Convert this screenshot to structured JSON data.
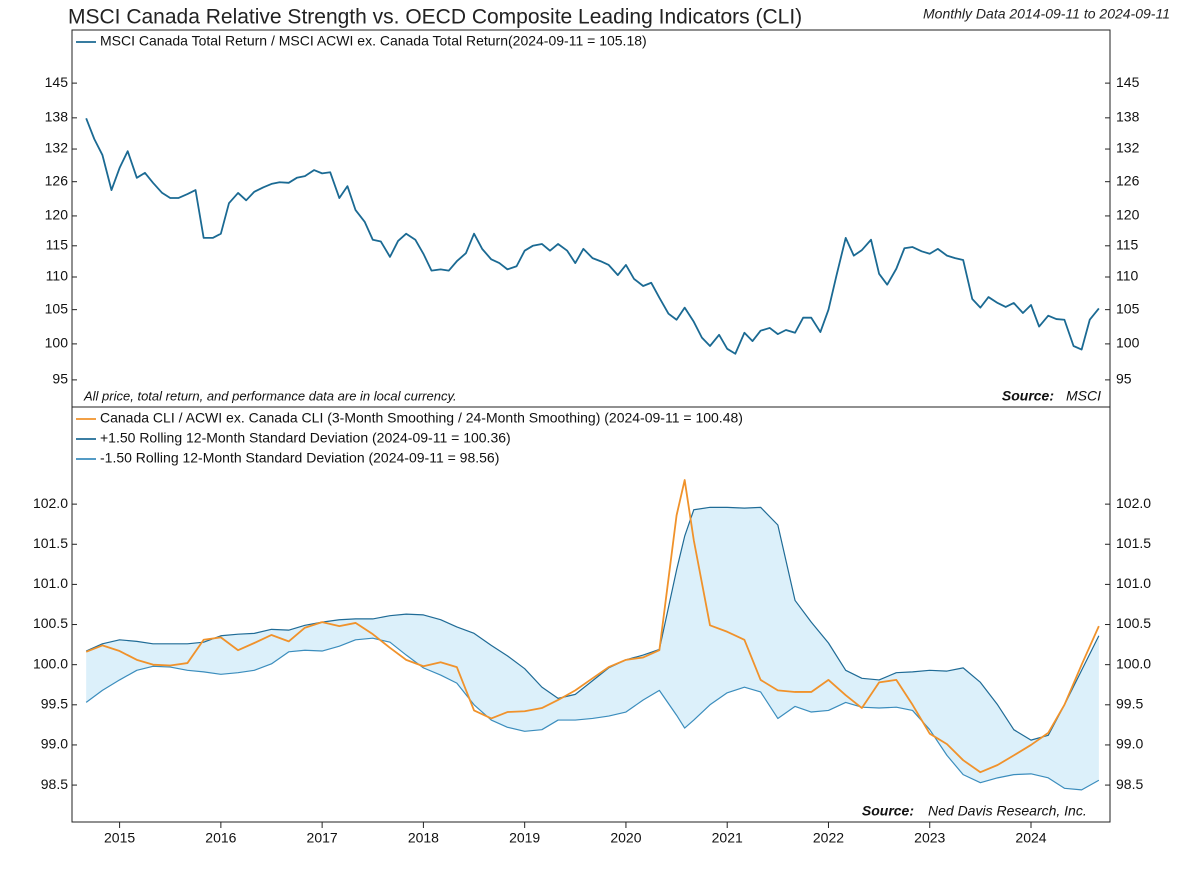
{
  "chart_data": [
    {
      "type": "line",
      "title": "MSCI Canada Relative Strength vs. OECD Composite Leading Indicators (CLI)",
      "subtitle": "Monthly Data 2014-09-11 to 2024-09-11",
      "x": [
        2014.67,
        2014.75,
        2014.83,
        2014.92,
        2015,
        2015.08,
        2015.17,
        2015.25,
        2015.33,
        2015.42,
        2015.5,
        2015.58,
        2015.67,
        2015.75,
        2015.83,
        2015.92,
        2016,
        2016.08,
        2016.17,
        2016.25,
        2016.33,
        2016.42,
        2016.5,
        2016.58,
        2016.67,
        2016.75,
        2016.83,
        2016.92,
        2017,
        2017.08,
        2017.17,
        2017.25,
        2017.33,
        2017.42,
        2017.5,
        2017.58,
        2017.67,
        2017.75,
        2017.83,
        2017.92,
        2018,
        2018.08,
        2018.17,
        2018.25,
        2018.33,
        2018.42,
        2018.5,
        2018.58,
        2018.67,
        2018.75,
        2018.83,
        2018.92,
        2019,
        2019.08,
        2019.17,
        2019.25,
        2019.33,
        2019.42,
        2019.5,
        2019.58,
        2019.67,
        2019.75,
        2019.83,
        2019.92,
        2020,
        2020.08,
        2020.17,
        2020.25,
        2020.33,
        2020.42,
        2020.5,
        2020.58,
        2020.67,
        2020.75,
        2020.83,
        2020.92,
        2021,
        2021.08,
        2021.17,
        2021.25,
        2021.33,
        2021.42,
        2021.5,
        2021.58,
        2021.67,
        2021.75,
        2021.83,
        2021.92,
        2022,
        2022.08,
        2022.17,
        2022.25,
        2022.33,
        2022.42,
        2022.5,
        2022.58,
        2022.67,
        2022.75,
        2022.83,
        2022.92,
        2023,
        2023.08,
        2023.17,
        2023.25,
        2023.33,
        2023.42,
        2023.5,
        2023.58,
        2023.67,
        2023.75,
        2023.83,
        2023.92,
        2024,
        2024.08,
        2024.17,
        2024.25,
        2024.33,
        2024.42,
        2024.5,
        2024.58,
        2024.67
      ],
      "xlim": [
        2014.53,
        2024.78
      ],
      "ylim": [
        91.4,
        156.4
      ],
      "log_scale": true,
      "yticks": [
        95,
        100,
        105,
        110,
        115,
        120,
        126,
        132,
        138,
        145
      ],
      "series": [
        {
          "name": "MSCI Canada Total Return / MSCI ACWI ex. Canada Total Return(2024-09-11 = 105.18)",
          "color": "#1b6a93",
          "values": [
            137.9,
            133.9,
            130.9,
            124.5,
            128.5,
            131.6,
            126.7,
            127.6,
            125.8,
            124.0,
            123.1,
            123.1,
            123.8,
            124.5,
            116.3,
            116.3,
            117.0,
            122.2,
            124.0,
            122.7,
            124.2,
            125.0,
            125.6,
            125.9,
            125.8,
            126.7,
            127.0,
            128.1,
            127.5,
            127.7,
            123.1,
            125.2,
            121.0,
            119.0,
            116.0,
            115.7,
            113.2,
            115.8,
            117.0,
            116.0,
            113.7,
            111.0,
            111.2,
            111.0,
            112.5,
            113.8,
            117.0,
            114.5,
            112.8,
            112.2,
            111.2,
            111.7,
            114.2,
            115.0,
            115.3,
            114.2,
            115.3,
            114.2,
            112.2,
            114.5,
            113.0,
            112.5,
            111.9,
            110.3,
            111.9,
            109.7,
            108.6,
            109.1,
            106.8,
            104.4,
            103.5,
            105.3,
            103.2,
            100.9,
            99.7,
            101.3,
            99.3,
            98.6,
            101.6,
            100.4,
            101.9,
            102.3,
            101.4,
            102.0,
            101.6,
            103.8,
            103.8,
            101.7,
            105.0,
            110.3,
            116.3,
            113.4,
            114.3,
            116.0,
            110.5,
            108.8,
            111.3,
            114.6,
            114.8,
            114.1,
            113.7,
            114.5,
            113.4,
            113.0,
            112.7,
            106.6,
            105.3,
            106.9,
            106.0,
            105.4,
            106.0,
            104.5,
            105.7,
            102.5,
            104.1,
            103.6,
            103.5,
            99.7,
            99.2,
            103.5,
            105.18
          ]
        }
      ],
      "note": "All price, total return, and performance data are in local currency.",
      "source_label": "Source:",
      "source": "MSCI"
    },
    {
      "type": "line",
      "x": [
        2014.67,
        2014.83,
        2015,
        2015.17,
        2015.33,
        2015.5,
        2015.67,
        2015.83,
        2016,
        2016.17,
        2016.33,
        2016.5,
        2016.67,
        2016.83,
        2017,
        2017.17,
        2017.33,
        2017.5,
        2017.67,
        2017.83,
        2018,
        2018.17,
        2018.33,
        2018.5,
        2018.67,
        2018.83,
        2019,
        2019.17,
        2019.33,
        2019.5,
        2019.67,
        2019.83,
        2020,
        2020.17,
        2020.33,
        2020.5,
        2020.58,
        2020.67,
        2020.83,
        2021,
        2021.17,
        2021.33,
        2021.5,
        2021.67,
        2021.83,
        2022,
        2022.17,
        2022.33,
        2022.5,
        2022.67,
        2022.83,
        2023,
        2023.17,
        2023.33,
        2023.5,
        2023.67,
        2023.83,
        2024,
        2024.17,
        2024.33,
        2024.5,
        2024.67
      ],
      "xlim": [
        2014.53,
        2024.78
      ],
      "xticks": [
        2015,
        2016,
        2017,
        2018,
        2019,
        2020,
        2021,
        2022,
        2023,
        2024
      ],
      "ylim": [
        98.04,
        103.21
      ],
      "yticks": [
        98.5,
        {
          "value": 99,
          "label": "99.0"
        },
        99.5,
        {
          "value": 100,
          "label": "100.0"
        },
        100.5,
        {
          "value": 101,
          "label": "101.0"
        },
        101.5,
        {
          "value": 102,
          "label": "102.0"
        }
      ],
      "band_color": "#dcf0fa",
      "series": [
        {
          "name": "Canada CLI / ACWI ex. Canada CLI (3-Month Smoothing / 24-Month Smoothing) (2024-09-11 = 100.48)",
          "color": "#f0922b",
          "values": [
            100.16,
            100.24,
            100.17,
            100.06,
            100.0,
            99.99,
            100.02,
            100.31,
            100.34,
            100.18,
            100.27,
            100.37,
            100.29,
            100.46,
            100.53,
            100.48,
            100.52,
            100.38,
            100.21,
            100.06,
            99.98,
            100.03,
            99.97,
            99.43,
            99.33,
            99.41,
            99.42,
            99.46,
            99.56,
            99.68,
            99.83,
            99.97,
            100.06,
            100.09,
            100.18,
            101.86,
            102.3,
            101.55,
            100.49,
            100.41,
            100.31,
            99.81,
            99.68,
            99.66,
            99.66,
            99.81,
            99.62,
            99.46,
            99.78,
            99.81,
            99.5,
            99.14,
            99.01,
            98.81,
            98.66,
            98.75,
            98.87,
            99.0,
            99.15,
            99.5,
            100.0,
            100.48
          ]
        },
        {
          "name": "+1.50 Rolling 12-Month Standard Deviation (2024-09-11 = 100.36)",
          "color": "#1f6b96",
          "values": [
            100.17,
            100.26,
            100.31,
            100.29,
            100.26,
            100.26,
            100.26,
            100.28,
            100.36,
            100.38,
            100.39,
            100.44,
            100.43,
            100.49,
            100.53,
            100.56,
            100.57,
            100.57,
            100.61,
            100.63,
            100.62,
            100.56,
            100.47,
            100.39,
            100.24,
            100.11,
            99.95,
            99.72,
            99.58,
            99.63,
            99.8,
            99.96,
            100.06,
            100.12,
            100.19,
            101.18,
            101.6,
            101.93,
            101.96,
            101.96,
            101.95,
            101.96,
            101.74,
            100.8,
            100.53,
            100.27,
            99.93,
            99.83,
            99.81,
            99.9,
            99.91,
            99.93,
            99.92,
            99.96,
            99.78,
            99.5,
            99.19,
            99.06,
            99.12,
            99.5,
            99.93,
            100.36
          ]
        },
        {
          "name": "-1.50 Rolling 12-Month Standard Deviation (2024-09-11 = 98.56)",
          "color": "#3b8dbd",
          "values": [
            99.53,
            99.68,
            99.81,
            99.93,
            99.98,
            99.97,
            99.93,
            99.91,
            99.88,
            99.9,
            99.93,
            100.01,
            100.16,
            100.18,
            100.17,
            100.23,
            100.31,
            100.33,
            100.28,
            100.12,
            99.96,
            99.87,
            99.77,
            99.5,
            99.31,
            99.22,
            99.17,
            99.19,
            99.31,
            99.31,
            99.33,
            99.36,
            99.41,
            99.56,
            99.68,
            99.37,
            99.21,
            99.31,
            99.5,
            99.65,
            99.72,
            99.66,
            99.33,
            99.48,
            99.41,
            99.43,
            99.53,
            99.47,
            99.46,
            99.47,
            99.43,
            99.19,
            98.87,
            98.63,
            98.53,
            98.59,
            98.63,
            98.64,
            98.59,
            98.46,
            98.44,
            98.56
          ]
        }
      ],
      "source_label": "Source:",
      "source": "Ned Davis Research, Inc."
    }
  ]
}
